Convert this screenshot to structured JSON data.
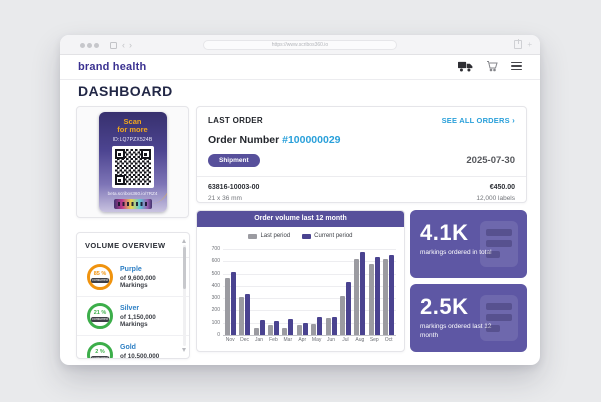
{
  "browser": {
    "url": "https://www.scribos360.io"
  },
  "icons": {
    "back_chevron": "‹",
    "forward_chevron": "›",
    "see_all_chevron": "›"
  },
  "app_header": {
    "logo": "brand health"
  },
  "page": {
    "title": "DASHBOARD"
  },
  "qr_card": {
    "scan_line1": "Scan",
    "scan_line2": "for more",
    "id_text": "ID:LQ7PZX524B",
    "url_text": "beta.scribos360.io/7RZ4"
  },
  "volume_overview": {
    "title": "VOLUME OVERVIEW",
    "items": [
      {
        "percent": "85 %",
        "consumed": "consumed",
        "name": "Purple",
        "detail": "of 9,600,000 Markings",
        "color": "#f0930e"
      },
      {
        "percent": "21 %",
        "consumed": "consumed",
        "name": "Silver",
        "detail": "of 1,150,000 Markings",
        "color": "#3cae4a"
      },
      {
        "percent": "2 %",
        "consumed": "consumed",
        "name": "Gold",
        "detail": "of 10,500,000 Markings",
        "color": "#3cae4a"
      }
    ]
  },
  "last_order": {
    "title": "LAST ORDER",
    "see_all": "SEE ALL ORDERS",
    "order_label": "Order Number",
    "order_number": "#100000029",
    "status": "Shipment",
    "date": "2025-07-30",
    "sku": "63816-10003-00",
    "size": "21 x 36 mm",
    "price": "€450.00",
    "quantity": "12,000 labels"
  },
  "chart_data": {
    "type": "bar",
    "title": "Order volume last 12 month",
    "categories": [
      "Nov",
      "Dec",
      "Jan",
      "Feb",
      "Mar",
      "Apr",
      "May",
      "Jun",
      "Jul",
      "Aug",
      "Sep",
      "Oct"
    ],
    "series": [
      {
        "name": "Last period",
        "color": "#9b9ba1",
        "values": [
          465,
          310,
          55,
          80,
          60,
          85,
          90,
          135,
          320,
          615,
          575,
          615
        ]
      },
      {
        "name": "Current period",
        "color": "#4a4390",
        "values": [
          510,
          330,
          120,
          115,
          130,
          95,
          150,
          145,
          430,
          675,
          635,
          655
        ]
      }
    ],
    "xlabel": "",
    "ylabel": "",
    "ylim": [
      0,
      700
    ],
    "ytick_step": 100,
    "grid": true,
    "legend_position": "top"
  },
  "stats": [
    {
      "value": "4.1K",
      "caption": "markings ordered in total"
    },
    {
      "value": "2.5K",
      "caption": "markings ordered last 12 month"
    }
  ],
  "colors": {
    "accent_purple": "#57509b",
    "stat_card_purple": "#5e57a4",
    "link_blue": "#2aa0da",
    "metal_name_blue": "#2d7fc4",
    "ring_orange": "#f0930e",
    "ring_green": "#3cae4a",
    "logo_purple": "#3a3191",
    "title_navy": "#222746"
  }
}
